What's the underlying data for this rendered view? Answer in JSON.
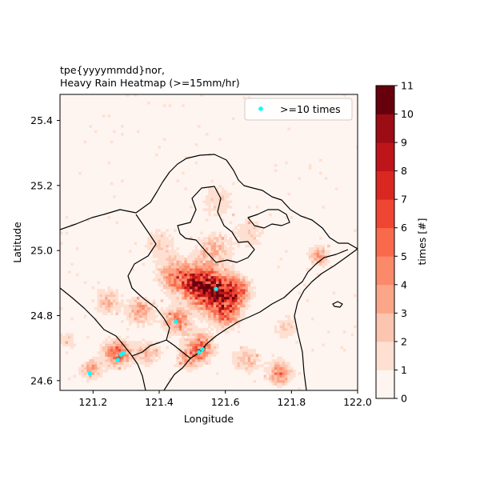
{
  "chart_data": {
    "type": "heatmap",
    "title_line1": "tpe{yyyymmdd}nor,",
    "title_line2": "Heavy Rain Heatmap (>=15mm/hr)",
    "xlabel": "Longitude",
    "ylabel": "Latitude",
    "xlim": [
      121.1,
      122.0
    ],
    "ylim": [
      24.57,
      25.48
    ],
    "xticks": [
      121.2,
      121.4,
      121.6,
      121.8,
      122.0
    ],
    "xtick_labels": [
      "121.2",
      "121.4",
      "121.6",
      "121.8",
      "122.0"
    ],
    "yticks": [
      24.6,
      24.8,
      25.0,
      25.2,
      25.4
    ],
    "ytick_labels": [
      "24.6",
      "24.8",
      "25.0",
      "25.2",
      "25.4"
    ],
    "legend": {
      "label": ">=10 times",
      "marker_color": "#00ffff",
      "placement": "top-right"
    },
    "colorbar": {
      "label": "times [#]",
      "levels": [
        0,
        1,
        2,
        3,
        4,
        5,
        6,
        7,
        8,
        9,
        10,
        11
      ],
      "level_labels": [
        "0",
        "1",
        "2",
        "3",
        "4",
        "5",
        "6",
        "7",
        "8",
        "9",
        "10",
        "11"
      ],
      "colors": [
        "#fff5f0",
        "#fee0d2",
        "#fcc5b0",
        "#fca689",
        "#fb8a6a",
        "#f96a4c",
        "#ef4533",
        "#d92822",
        "#bd151a",
        "#9b0c14",
        "#67000d"
      ]
    },
    "hotspots": [
      {
        "lon": 121.56,
        "lat": 24.87,
        "intensity": 9,
        "spread": 0.06
      },
      {
        "lon": 121.5,
        "lat": 24.9,
        "intensity": 6,
        "spread": 0.05
      },
      {
        "lon": 121.44,
        "lat": 24.92,
        "intensity": 4,
        "spread": 0.05
      },
      {
        "lon": 121.6,
        "lat": 24.8,
        "intensity": 5,
        "spread": 0.04
      },
      {
        "lon": 121.63,
        "lat": 24.87,
        "intensity": 6,
        "spread": 0.04
      },
      {
        "lon": 121.45,
        "lat": 24.78,
        "intensity": 5,
        "spread": 0.04
      },
      {
        "lon": 121.27,
        "lat": 24.68,
        "intensity": 6,
        "spread": 0.04
      },
      {
        "lon": 121.19,
        "lat": 24.63,
        "intensity": 4,
        "spread": 0.03
      },
      {
        "lon": 121.52,
        "lat": 24.7,
        "intensity": 6,
        "spread": 0.04
      },
      {
        "lon": 121.76,
        "lat": 24.62,
        "intensity": 5,
        "spread": 0.035
      },
      {
        "lon": 121.34,
        "lat": 24.81,
        "intensity": 4,
        "spread": 0.04
      },
      {
        "lon": 121.24,
        "lat": 24.84,
        "intensity": 3,
        "spread": 0.04
      },
      {
        "lon": 121.88,
        "lat": 24.98,
        "intensity": 4,
        "spread": 0.03
      },
      {
        "lon": 121.56,
        "lat": 25.0,
        "intensity": 3,
        "spread": 0.05
      },
      {
        "lon": 121.67,
        "lat": 25.05,
        "intensity": 2,
        "spread": 0.05
      },
      {
        "lon": 121.57,
        "lat": 25.15,
        "intensity": 2,
        "spread": 0.05
      },
      {
        "lon": 121.4,
        "lat": 25.02,
        "intensity": 2,
        "spread": 0.05
      },
      {
        "lon": 121.36,
        "lat": 24.68,
        "intensity": 3,
        "spread": 0.04
      },
      {
        "lon": 121.66,
        "lat": 24.66,
        "intensity": 3,
        "spread": 0.04
      },
      {
        "lon": 121.78,
        "lat": 24.76,
        "intensity": 2,
        "spread": 0.04
      },
      {
        "lon": 121.48,
        "lat": 24.66,
        "intensity": 3,
        "spread": 0.035
      },
      {
        "lon": 121.12,
        "lat": 24.72,
        "intensity": 2,
        "spread": 0.03
      }
    ],
    "scatter_points": [
      {
        "lon": 121.572,
        "lat": 24.882
      },
      {
        "lon": 121.451,
        "lat": 24.781
      },
      {
        "lon": 121.291,
        "lat": 24.685
      },
      {
        "lon": 121.284,
        "lat": 24.68
      },
      {
        "lon": 121.275,
        "lat": 24.664
      },
      {
        "lon": 121.531,
        "lat": 24.697
      },
      {
        "lon": 121.52,
        "lat": 24.687
      },
      {
        "lon": 121.19,
        "lat": 24.622
      }
    ]
  }
}
